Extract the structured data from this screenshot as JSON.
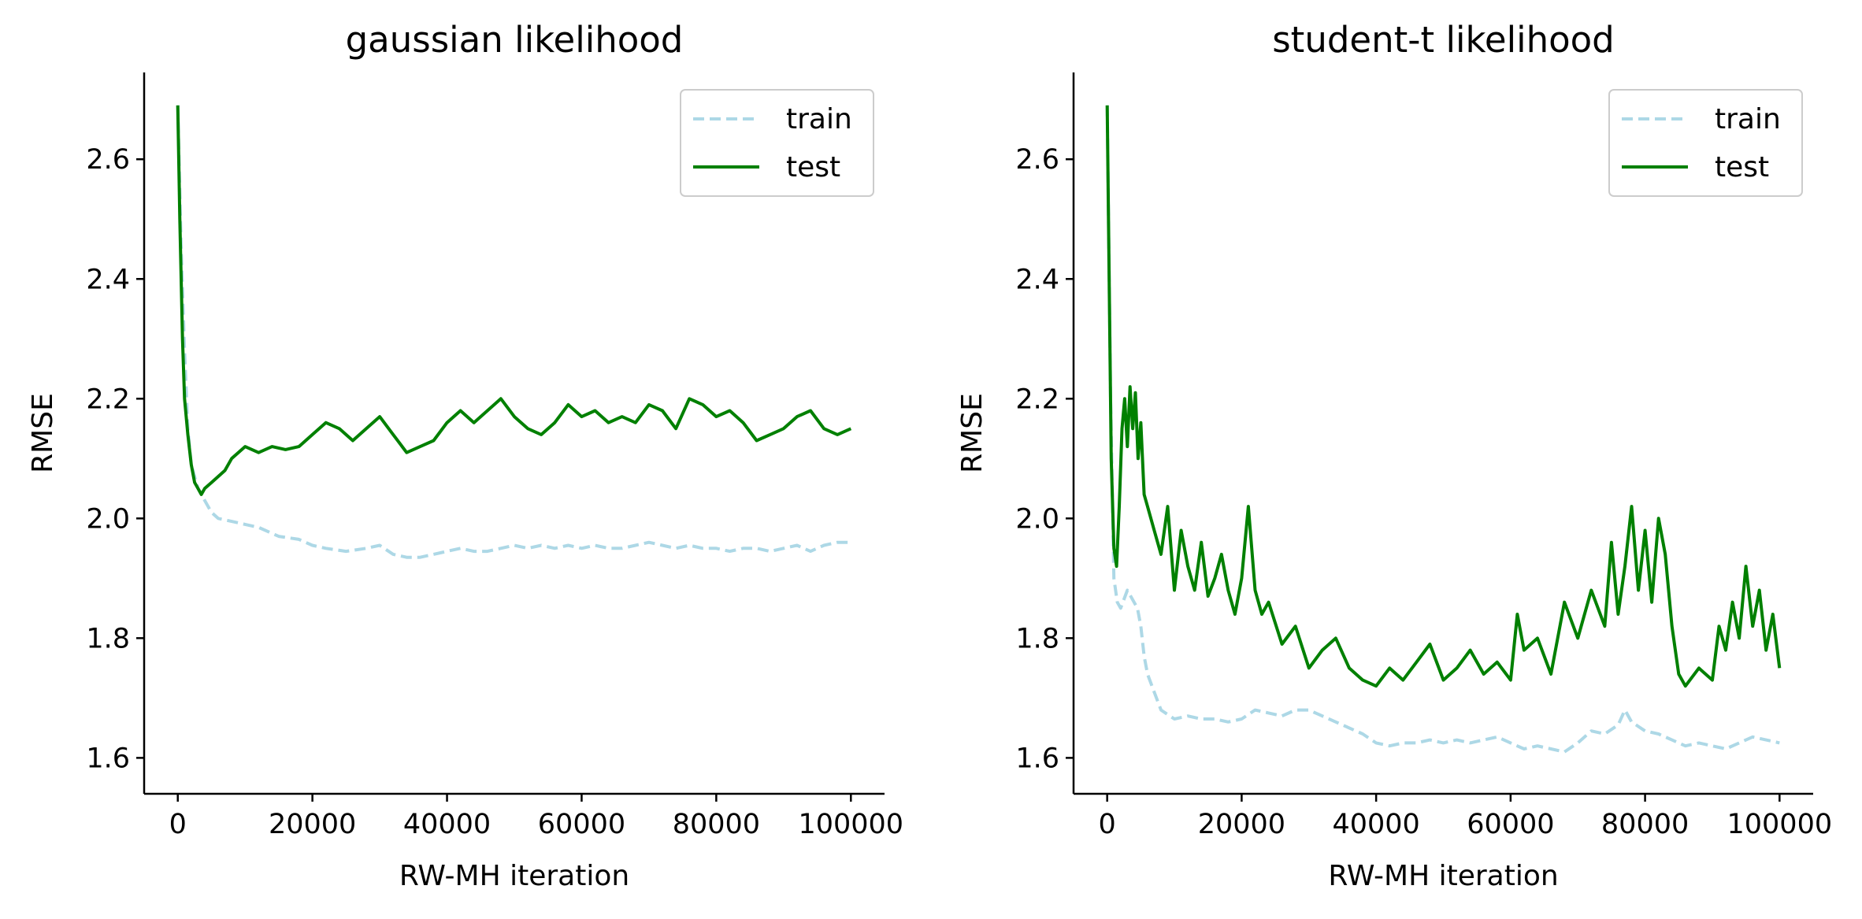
{
  "figure": {
    "background": "#ffffff",
    "colors": {
      "train": "#add8e6",
      "test": "#008000",
      "axis": "#000000",
      "legend_border": "#cccccc"
    }
  },
  "chart_data": [
    {
      "type": "line",
      "title": "gaussian likelihood",
      "xlabel": "RW-MH iteration",
      "ylabel": "RMSE",
      "xlim": [
        -5000,
        105000
      ],
      "ylim": [
        1.54,
        2.745
      ],
      "xticks": [
        0,
        20000,
        40000,
        60000,
        80000,
        100000
      ],
      "xtick_labels": [
        "0",
        "20000",
        "40000",
        "60000",
        "80000",
        "100000"
      ],
      "yticks": [
        1.6,
        1.8,
        2.0,
        2.2,
        2.4,
        2.6
      ],
      "ytick_labels": [
        "1.6",
        "1.8",
        "2.0",
        "2.2",
        "2.4",
        "2.6"
      ],
      "grid": false,
      "legend": {
        "placement": "upper right",
        "entries": [
          "train",
          "test"
        ]
      },
      "series": [
        {
          "name": "train",
          "style": "dashed",
          "color": "#add8e6",
          "x": [
            0,
            500,
            1000,
            1500,
            2000,
            3000,
            4000,
            5000,
            6000,
            8000,
            10000,
            12000,
            15000,
            18000,
            20000,
            22000,
            25000,
            28000,
            30000,
            32000,
            34000,
            36000,
            38000,
            40000,
            42000,
            44000,
            46000,
            48000,
            50000,
            52000,
            54000,
            56000,
            58000,
            60000,
            62000,
            64000,
            66000,
            68000,
            70000,
            72000,
            74000,
            76000,
            78000,
            80000,
            82000,
            84000,
            86000,
            88000,
            90000,
            92000,
            94000,
            96000,
            98000,
            100000
          ],
          "y": [
            2.69,
            2.45,
            2.28,
            2.15,
            2.09,
            2.05,
            2.03,
            2.01,
            2.0,
            1.995,
            1.99,
            1.985,
            1.97,
            1.965,
            1.955,
            1.95,
            1.945,
            1.95,
            1.955,
            1.94,
            1.935,
            1.935,
            1.94,
            1.945,
            1.95,
            1.945,
            1.945,
            1.95,
            1.955,
            1.95,
            1.955,
            1.95,
            1.955,
            1.95,
            1.955,
            1.95,
            1.95,
            1.955,
            1.96,
            1.955,
            1.95,
            1.955,
            1.95,
            1.95,
            1.945,
            1.95,
            1.95,
            1.945,
            1.95,
            1.955,
            1.945,
            1.955,
            1.96,
            1.96
          ]
        },
        {
          "name": "test",
          "style": "solid",
          "color": "#008000",
          "x": [
            0,
            300,
            700,
            1000,
            1500,
            2000,
            2500,
            3000,
            3500,
            4000,
            5000,
            6000,
            7000,
            8000,
            9000,
            10000,
            12000,
            14000,
            16000,
            18000,
            20000,
            22000,
            24000,
            26000,
            28000,
            30000,
            32000,
            34000,
            36000,
            38000,
            40000,
            42000,
            44000,
            46000,
            48000,
            50000,
            52000,
            54000,
            56000,
            58000,
            60000,
            62000,
            64000,
            66000,
            68000,
            70000,
            72000,
            74000,
            76000,
            78000,
            80000,
            82000,
            84000,
            86000,
            88000,
            90000,
            92000,
            94000,
            96000,
            98000,
            100000
          ],
          "y": [
            2.69,
            2.5,
            2.3,
            2.2,
            2.14,
            2.09,
            2.06,
            2.05,
            2.04,
            2.05,
            2.06,
            2.07,
            2.08,
            2.1,
            2.11,
            2.12,
            2.11,
            2.12,
            2.115,
            2.12,
            2.14,
            2.16,
            2.15,
            2.13,
            2.15,
            2.17,
            2.14,
            2.11,
            2.12,
            2.13,
            2.16,
            2.18,
            2.16,
            2.18,
            2.2,
            2.17,
            2.15,
            2.14,
            2.16,
            2.19,
            2.17,
            2.18,
            2.16,
            2.17,
            2.16,
            2.19,
            2.18,
            2.15,
            2.2,
            2.19,
            2.17,
            2.18,
            2.16,
            2.13,
            2.14,
            2.15,
            2.17,
            2.18,
            2.15,
            2.14,
            2.15
          ]
        }
      ]
    },
    {
      "type": "line",
      "title": "student-t likelihood",
      "xlabel": "RW-MH iteration",
      "ylabel": "RMSE",
      "xlim": [
        -5000,
        105000
      ],
      "ylim": [
        1.54,
        2.745
      ],
      "xticks": [
        0,
        20000,
        40000,
        60000,
        80000,
        100000
      ],
      "xtick_labels": [
        "0",
        "20000",
        "40000",
        "60000",
        "80000",
        "100000"
      ],
      "yticks": [
        1.6,
        1.8,
        2.0,
        2.2,
        2.4,
        2.6
      ],
      "ytick_labels": [
        "1.6",
        "1.8",
        "2.0",
        "2.2",
        "2.4",
        "2.6"
      ],
      "grid": false,
      "legend": {
        "placement": "upper right",
        "entries": [
          "train",
          "test"
        ]
      },
      "series": [
        {
          "name": "train",
          "style": "dashed",
          "color": "#add8e6",
          "x": [
            0,
            500,
            1000,
            1500,
            2000,
            3000,
            4000,
            4500,
            5000,
            5500,
            6000,
            7000,
            8000,
            10000,
            12000,
            14000,
            16000,
            18000,
            20000,
            22000,
            24000,
            26000,
            28000,
            30000,
            32000,
            34000,
            36000,
            38000,
            40000,
            42000,
            44000,
            46000,
            48000,
            50000,
            52000,
            54000,
            56000,
            58000,
            60000,
            62000,
            64000,
            66000,
            68000,
            70000,
            72000,
            74000,
            76000,
            77000,
            78000,
            80000,
            82000,
            84000,
            86000,
            88000,
            90000,
            92000,
            94000,
            96000,
            98000,
            100000
          ],
          "y": [
            2.69,
            2.2,
            1.9,
            1.86,
            1.85,
            1.88,
            1.86,
            1.85,
            1.82,
            1.77,
            1.74,
            1.71,
            1.68,
            1.665,
            1.67,
            1.665,
            1.665,
            1.66,
            1.665,
            1.68,
            1.675,
            1.67,
            1.68,
            1.68,
            1.67,
            1.66,
            1.65,
            1.64,
            1.625,
            1.62,
            1.625,
            1.625,
            1.63,
            1.625,
            1.63,
            1.625,
            1.63,
            1.635,
            1.625,
            1.615,
            1.62,
            1.615,
            1.61,
            1.625,
            1.645,
            1.64,
            1.655,
            1.68,
            1.66,
            1.645,
            1.64,
            1.63,
            1.62,
            1.625,
            1.62,
            1.615,
            1.625,
            1.635,
            1.63,
            1.625
          ]
        },
        {
          "name": "test",
          "style": "solid",
          "color": "#008000",
          "x": [
            0,
            300,
            600,
            1000,
            1400,
            1800,
            2200,
            2600,
            3000,
            3400,
            3800,
            4200,
            4600,
            5000,
            5500,
            6000,
            7000,
            8000,
            9000,
            10000,
            11000,
            12000,
            13000,
            14000,
            15000,
            16000,
            17000,
            18000,
            19000,
            20000,
            21000,
            22000,
            23000,
            24000,
            26000,
            28000,
            30000,
            32000,
            34000,
            36000,
            38000,
            40000,
            42000,
            44000,
            46000,
            48000,
            50000,
            52000,
            54000,
            56000,
            58000,
            60000,
            61000,
            62000,
            64000,
            66000,
            68000,
            70000,
            72000,
            74000,
            75000,
            76000,
            77000,
            78000,
            79000,
            80000,
            81000,
            82000,
            83000,
            84000,
            85000,
            86000,
            88000,
            90000,
            91000,
            92000,
            93000,
            94000,
            95000,
            96000,
            97000,
            98000,
            99000,
            100000
          ],
          "y": [
            2.69,
            2.4,
            2.1,
            1.95,
            1.92,
            2.02,
            2.15,
            2.2,
            2.12,
            2.22,
            2.15,
            2.21,
            2.1,
            2.16,
            2.04,
            2.02,
            1.98,
            1.94,
            2.02,
            1.88,
            1.98,
            1.92,
            1.88,
            1.96,
            1.87,
            1.9,
            1.94,
            1.88,
            1.84,
            1.9,
            2.02,
            1.88,
            1.84,
            1.86,
            1.79,
            1.82,
            1.75,
            1.78,
            1.8,
            1.75,
            1.73,
            1.72,
            1.75,
            1.73,
            1.76,
            1.79,
            1.73,
            1.75,
            1.78,
            1.74,
            1.76,
            1.73,
            1.84,
            1.78,
            1.8,
            1.74,
            1.86,
            1.8,
            1.88,
            1.82,
            1.96,
            1.84,
            1.92,
            2.02,
            1.88,
            1.98,
            1.86,
            2.0,
            1.94,
            1.82,
            1.74,
            1.72,
            1.75,
            1.73,
            1.82,
            1.78,
            1.86,
            1.8,
            1.92,
            1.82,
            1.88,
            1.78,
            1.84,
            1.75
          ]
        }
      ]
    }
  ]
}
